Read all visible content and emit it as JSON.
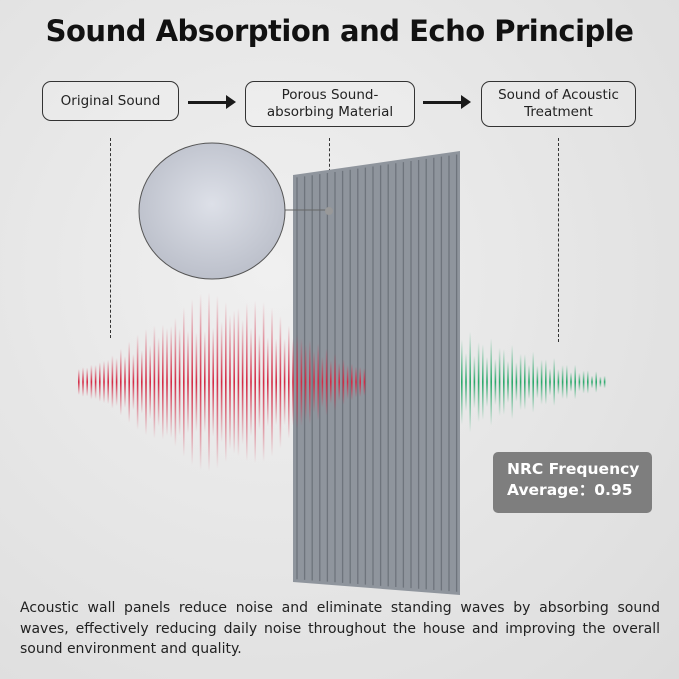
{
  "title": "Sound Absorption and Echo Principle",
  "flow": [
    {
      "label": "Original Sound"
    },
    {
      "label": "Porous Sound-absorbing Material"
    },
    {
      "label": "Sound of Acoustic Treatment"
    }
  ],
  "nrc": {
    "line1": "NRC Frequency",
    "line2": "Average：0.95"
  },
  "description": "Acoustic wall panels reduce noise and eliminate standing waves by absorbing sound waves, effectively reducing daily noise throughout the house and improving the overall sound environment and quality.",
  "colors": {
    "original_wave": "#d42a45",
    "treated_wave": "#2aa86a",
    "panel": "#8e949c",
    "nrc_badge": "#7e7e7e"
  }
}
